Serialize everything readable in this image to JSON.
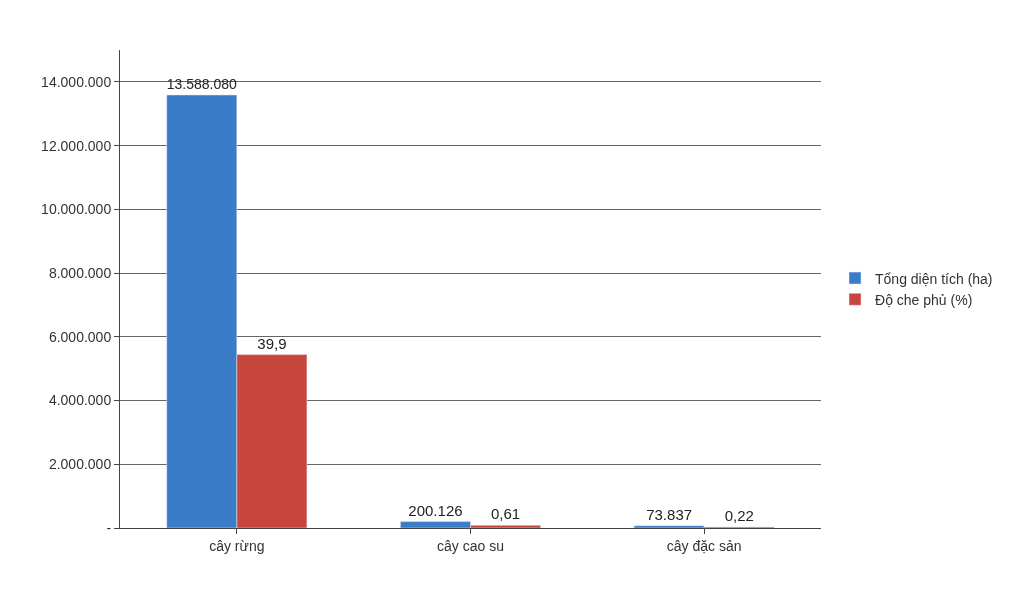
{
  "chart_data": {
    "type": "bar",
    "categories": [
      "cây rừng",
      "cây cao su",
      "cây đặc sản"
    ],
    "series": [
      {
        "name": "Tổng diện tích (ha)",
        "color": "#3a7cc8",
        "values": [
          13588080,
          200126,
          73837
        ],
        "value_labels": [
          "13.588.080",
          "200.126",
          "73.837"
        ]
      },
      {
        "name": "Độ che phủ (%)",
        "color": "#c8453e",
        "values": [
          39.9,
          0.61,
          0.22
        ],
        "value_labels": [
          "39,9",
          "0,61",
          "0,22"
        ],
        "axis": "y2"
      }
    ],
    "ylim": [
      0,
      15000000
    ],
    "yticks": [
      {
        "value": 0,
        "label": "-"
      },
      {
        "value": 2000000,
        "label": "2.000.000"
      },
      {
        "value": 4000000,
        "label": "4.000.000"
      },
      {
        "value": 6000000,
        "label": "6.000.000"
      },
      {
        "value": 8000000,
        "label": "8.000.000"
      },
      {
        "value": 10000000,
        "label": "10.000.000"
      },
      {
        "value": 12000000,
        "label": "12.000.000"
      },
      {
        "value": 14000000,
        "label": "14.000.000"
      }
    ],
    "y2lim": [
      0,
      110
    ],
    "grid": "y",
    "legend": "right"
  }
}
